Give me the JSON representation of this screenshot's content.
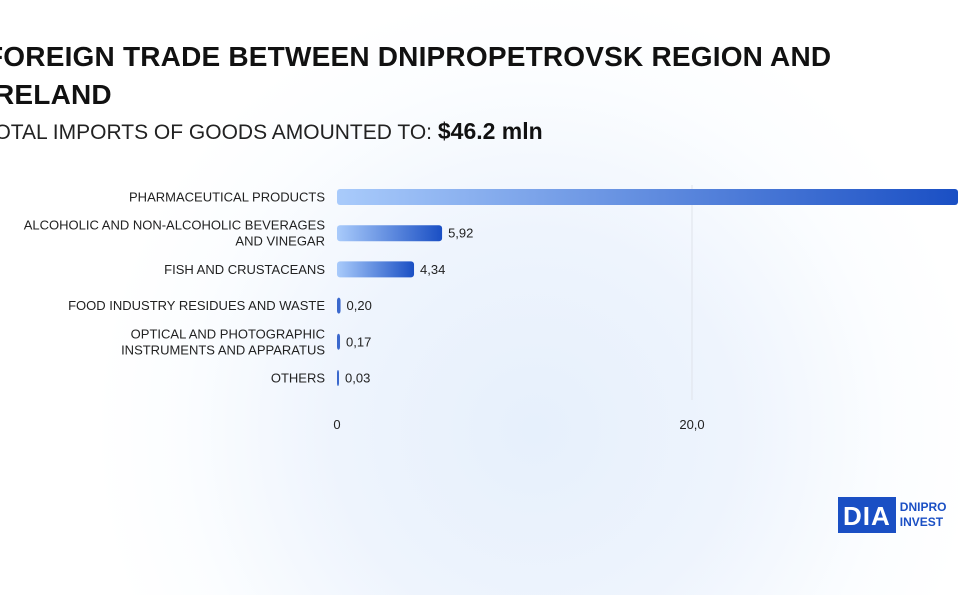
{
  "title": "FOREIGN TRADE BETWEEN DNIPROPETROVSK REGION AND IRELAND",
  "subtitle_label": "TOTAL IMPORTS OF GOODS AMOUNTED TO:",
  "subtitle_value": "$46.2 mln",
  "logo": {
    "mark": "DIA",
    "text_line1": "DNIPRO",
    "text_line2": "INVEST"
  },
  "chart_data": {
    "type": "bar",
    "orientation": "horizontal",
    "categories": [
      "PHARMACEUTICAL PRODUCTS",
      "ALCOHOLIC AND NON-ALCOHOLIC BEVERAGES AND VINEGAR",
      "FISH AND CRUSTACEANS",
      "FOOD INDUSTRY RESIDUES AND WASTE",
      "OPTICAL AND PHOTOGRAPHIC INSTRUMENTS AND APPARATUS",
      "OTHERS"
    ],
    "category_lines": [
      [
        "PHARMACEUTICAL PRODUCTS"
      ],
      [
        "ALCOHOLIC AND NON-ALCOHOLIC BEVERAGES",
        "AND VINEGAR"
      ],
      [
        "FISH AND CRUSTACEANS"
      ],
      [
        "FOOD INDUSTRY RESIDUES AND WASTE"
      ],
      [
        "OPTICAL AND PHOTOGRAPHIC",
        "INSTRUMENTS AND APPARATUS"
      ],
      [
        "OTHERS"
      ]
    ],
    "values": [
      35.54,
      5.92,
      4.34,
      0.2,
      0.17,
      0.03
    ],
    "value_labels": [
      "",
      "5,92",
      "4,34",
      "0,20",
      "0,17",
      "0,03"
    ],
    "x_ticks": [
      {
        "value": 0,
        "label": "0"
      },
      {
        "value": 20,
        "label": "20,0"
      }
    ],
    "grid": true,
    "colors": {
      "bar_start": "#a9cbfb",
      "bar_end": "#1a4fc4"
    }
  }
}
